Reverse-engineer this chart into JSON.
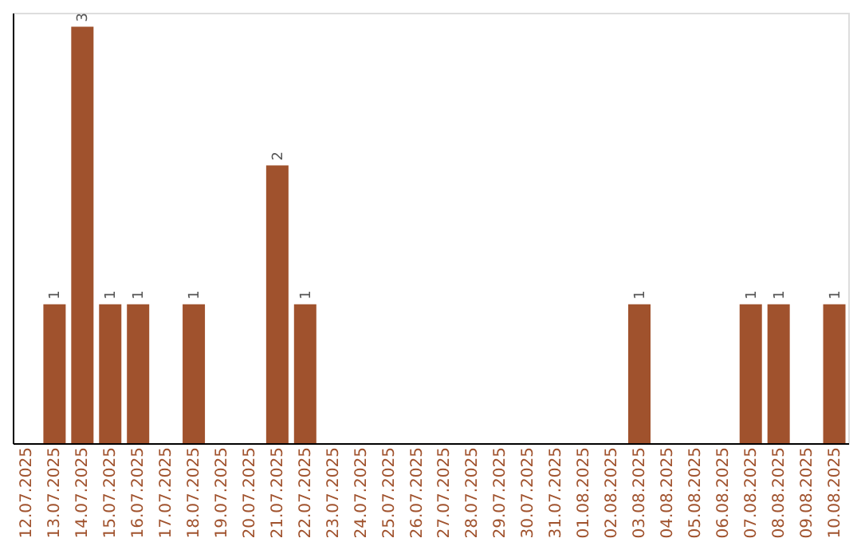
{
  "chart_data": {
    "type": "bar",
    "categories": [
      "12.07.2025",
      "13.07.2025",
      "14.07.2025",
      "15.07.2025",
      "16.07.2025",
      "17.07.2025",
      "18.07.2025",
      "19.07.2025",
      "20.07.2025",
      "21.07.2025",
      "22.07.2025",
      "23.07.2025",
      "24.07.2025",
      "25.07.2025",
      "26.07.2025",
      "27.07.2025",
      "28.07.2025",
      "29.07.2025",
      "30.07.2025",
      "31.07.2025",
      "01.08.2025",
      "02.08.2025",
      "03.08.2025",
      "04.08.2025",
      "05.08.2025",
      "06.08.2025",
      "07.08.2025",
      "08.08.2025",
      "09.08.2025",
      "10.08.2025"
    ],
    "values": [
      0,
      1,
      3,
      1,
      1,
      0,
      1,
      0,
      0,
      2,
      1,
      0,
      0,
      0,
      0,
      0,
      0,
      0,
      0,
      0,
      0,
      0,
      1,
      0,
      0,
      0,
      1,
      1,
      0,
      1
    ],
    "value_labels": [
      null,
      "1",
      "3",
      "1",
      "1",
      null,
      "1",
      null,
      null,
      "2",
      "1",
      null,
      null,
      null,
      null,
      null,
      null,
      null,
      null,
      null,
      null,
      null,
      "1",
      null,
      null,
      null,
      "1",
      "1",
      null,
      "1"
    ],
    "color": "#a0522d",
    "ylim": [
      0,
      3.1
    ],
    "tick_labels": "x"
  }
}
